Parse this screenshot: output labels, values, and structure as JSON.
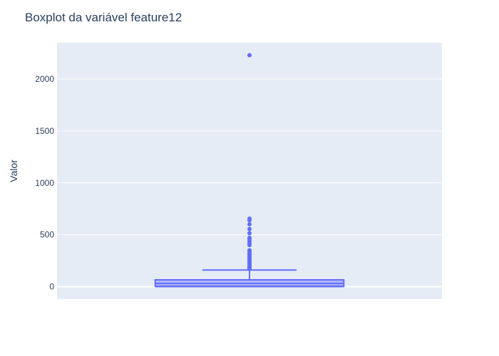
{
  "chart_data": {
    "type": "box",
    "title": "Boxplot da variável feature12",
    "xlabel": "",
    "ylabel": "Valor",
    "ylim": [
      -120,
      2350
    ],
    "y_ticks": [
      0,
      500,
      1000,
      1500,
      2000
    ],
    "y_tick_labels": [
      "0",
      "500",
      "1000",
      "1500",
      "2000"
    ],
    "grid": true,
    "colors": {
      "plot_background": "#e5ecf6",
      "grid": "#ffffff",
      "box_line": "#636efa",
      "box_fill": "#a5abfc",
      "text": "#2a3f5f"
    },
    "box": {
      "min": 0,
      "q1": 4,
      "median": 30,
      "q3": 65,
      "upper_fence": 160,
      "outliers": [
        170,
        178,
        185,
        192,
        200,
        210,
        220,
        232,
        245,
        258,
        270,
        282,
        295,
        308,
        322,
        336,
        350,
        400,
        420,
        440,
        460,
        470,
        515,
        555,
        600,
        640,
        655,
        2230
      ]
    }
  }
}
